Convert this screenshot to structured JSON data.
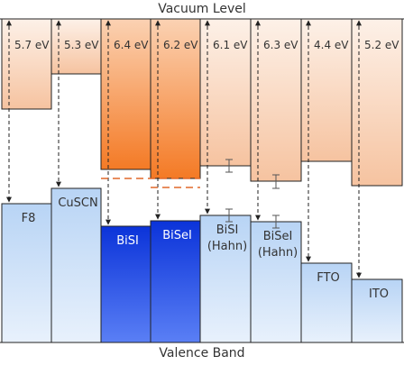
{
  "header": {
    "vacuum_level": "Vacuum Level"
  },
  "footer": {
    "valence_band": "Valence Band"
  },
  "columns": [
    {
      "energy_label": "5.7 eV",
      "material_lines": [
        "F8"
      ],
      "highlight": false
    },
    {
      "energy_label": "5.3 eV",
      "material_lines": [
        "CuSCN"
      ],
      "highlight": false
    },
    {
      "energy_label": "6.4 eV",
      "material_lines": [
        "BiSI"
      ],
      "highlight": true
    },
    {
      "energy_label": "6.2 eV",
      "material_lines": [
        "BiSeI"
      ],
      "highlight": true
    },
    {
      "energy_label": "6.1 eV",
      "material_lines": [
        "BiSI",
        "(Hahn)"
      ],
      "highlight": false
    },
    {
      "energy_label": "6.3 eV",
      "material_lines": [
        "BiSeI",
        "(Hahn)"
      ],
      "highlight": false
    },
    {
      "energy_label": "4.4 eV",
      "material_lines": [
        "FTO"
      ],
      "highlight": false
    },
    {
      "energy_label": "5.2 eV",
      "material_lines": [
        "ITO"
      ],
      "highlight": false
    }
  ],
  "colors": {
    "upper_fill_top": "#fdf1e8",
    "upper_fill_bottom": "#f6c3a0",
    "upper_hi_top": "#fbd2b3",
    "upper_hi_bottom": "#f47a25",
    "lower_fill_top": "#b8d4f5",
    "lower_fill_bottom": "#e8f1fc",
    "lower_hi_top": "#0b33d9",
    "lower_hi_bottom": "#5a7ff5",
    "border": "#222222",
    "dashed_orange": "#e0692a",
    "text_dark": "#333333",
    "text_light": "#ffffff"
  }
}
